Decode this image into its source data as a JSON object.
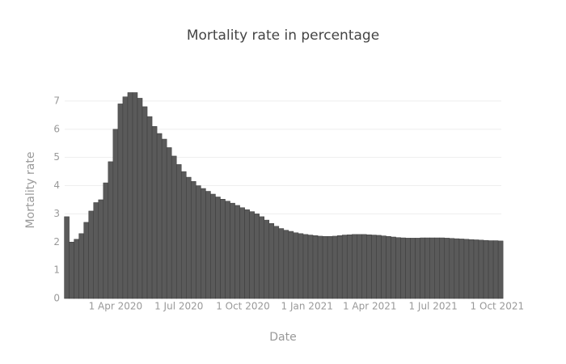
{
  "chart_data": {
    "type": "bar",
    "title": "Mortality rate in percentage",
    "x_label": "Date",
    "y_label": "Mortality rate",
    "color": "#5a5a5a",
    "grid": true,
    "x": [
      "2020-01-22",
      "2020-01-29",
      "2020-02-05",
      "2020-02-12",
      "2020-02-19",
      "2020-02-26",
      "2020-03-04",
      "2020-03-11",
      "2020-03-18",
      "2020-03-25",
      "2020-04-01",
      "2020-04-08",
      "2020-04-15",
      "2020-04-22",
      "2020-04-29",
      "2020-05-06",
      "2020-05-13",
      "2020-05-20",
      "2020-05-27",
      "2020-06-03",
      "2020-06-10",
      "2020-06-17",
      "2020-06-24",
      "2020-07-01",
      "2020-07-08",
      "2020-07-15",
      "2020-07-22",
      "2020-07-29",
      "2020-08-05",
      "2020-08-12",
      "2020-08-19",
      "2020-08-26",
      "2020-09-02",
      "2020-09-09",
      "2020-09-16",
      "2020-09-23",
      "2020-09-30",
      "2020-10-07",
      "2020-10-14",
      "2020-10-21",
      "2020-10-28",
      "2020-11-04",
      "2020-11-11",
      "2020-11-18",
      "2020-11-25",
      "2020-12-02",
      "2020-12-09",
      "2020-12-16",
      "2020-12-23",
      "2020-12-30",
      "2021-01-06",
      "2021-01-13",
      "2021-01-20",
      "2021-01-27",
      "2021-02-03",
      "2021-02-10",
      "2021-02-17",
      "2021-02-24",
      "2021-03-03",
      "2021-03-10",
      "2021-03-17",
      "2021-03-24",
      "2021-03-31",
      "2021-04-07",
      "2021-04-14",
      "2021-04-21",
      "2021-04-28",
      "2021-05-05",
      "2021-05-12",
      "2021-05-19",
      "2021-05-26",
      "2021-06-02",
      "2021-06-09",
      "2021-06-16",
      "2021-06-23",
      "2021-06-30",
      "2021-07-07",
      "2021-07-14",
      "2021-07-21",
      "2021-07-28",
      "2021-08-04",
      "2021-08-11",
      "2021-08-18",
      "2021-08-25",
      "2021-09-01",
      "2021-09-08",
      "2021-09-15",
      "2021-09-22",
      "2021-09-29",
      "2021-10-06"
    ],
    "values": [
      2.9,
      2.0,
      2.1,
      2.3,
      2.7,
      3.1,
      3.4,
      3.5,
      4.1,
      4.85,
      6.0,
      6.9,
      7.15,
      7.3,
      7.3,
      7.1,
      6.8,
      6.45,
      6.1,
      5.85,
      5.65,
      5.35,
      5.05,
      4.75,
      4.5,
      4.3,
      4.15,
      4.0,
      3.9,
      3.8,
      3.7,
      3.6,
      3.52,
      3.45,
      3.38,
      3.3,
      3.22,
      3.15,
      3.08,
      3.0,
      2.9,
      2.78,
      2.66,
      2.56,
      2.48,
      2.42,
      2.38,
      2.33,
      2.3,
      2.27,
      2.25,
      2.23,
      2.21,
      2.2,
      2.2,
      2.21,
      2.23,
      2.25,
      2.26,
      2.27,
      2.27,
      2.27,
      2.26,
      2.25,
      2.24,
      2.22,
      2.2,
      2.18,
      2.16,
      2.15,
      2.14,
      2.14,
      2.14,
      2.15,
      2.15,
      2.15,
      2.15,
      2.15,
      2.14,
      2.13,
      2.12,
      2.11,
      2.1,
      2.09,
      2.08,
      2.07,
      2.06,
      2.05,
      2.05,
      2.04
    ],
    "xlim": [
      "2020-01-19",
      "2021-10-07"
    ],
    "xticks": [
      {
        "value": "2020-04-01",
        "label": "1 Apr 2020"
      },
      {
        "value": "2020-07-01",
        "label": "1 Jul 2020"
      },
      {
        "value": "2020-10-01",
        "label": "1 Oct 2020"
      },
      {
        "value": "2021-01-01",
        "label": "1 Jan 2021"
      },
      {
        "value": "2021-04-01",
        "label": "1 Apr 2021"
      },
      {
        "value": "2021-07-01",
        "label": "1 Jul 2021"
      },
      {
        "value": "2021-10-01",
        "label": "1 Oct 2021"
      }
    ],
    "ylim": [
      0,
      7.6
    ],
    "yticks": [
      0,
      1,
      2,
      3,
      4,
      5,
      6,
      7
    ]
  }
}
